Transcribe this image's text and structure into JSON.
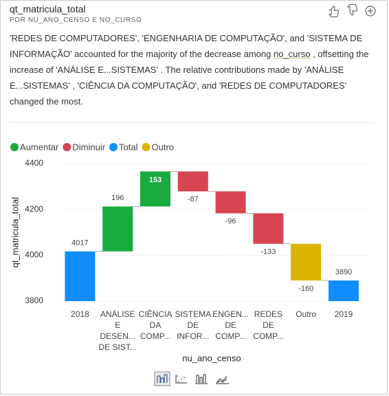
{
  "title": "qt_matricula_total",
  "subtitle": "POR NU_ANO_CENSO E NO_CURSO",
  "narrative": [
    "'REDES DE COMPUTADORES', 'ENGENHARIA DE COMPUTAÇÃO', and 'SISTEMA DE INFORMAÇÃO' accounted for the majority of the decrease among ",
    "no_curso",
    " , offsetting the increase of 'ANÁLISE E...SISTEMAS' . The relative contributions made by 'ANÁLISE E...SISTEMAS' , 'CIÊNCIA DA COMPUTAÇÃO', and 'REDES DE COMPUTADORES' changed the most."
  ],
  "chart_data": {
    "type": "waterfall",
    "legend": [
      {
        "name": "Aumentar",
        "color": "#1aab40"
      },
      {
        "name": "Diminuir",
        "color": "#d64550"
      },
      {
        "name": "Total",
        "color": "#118dff"
      },
      {
        "name": "Outro",
        "color": "#d9b300"
      }
    ],
    "categories": [
      [
        "2018"
      ],
      [
        "ANÁLISE",
        "E",
        "DESEN...",
        "DE SIST..."
      ],
      [
        "CIÊNCIA",
        "DA",
        "COMP..."
      ],
      [
        "SISTEMA",
        "DE",
        "INFOR..."
      ],
      [
        "ENGEN...",
        "DE",
        "COMP..."
      ],
      [
        "REDES",
        "DE",
        "COMP..."
      ],
      [
        "Outro"
      ],
      [
        "2019"
      ]
    ],
    "kinds": [
      "Total",
      "Aumentar",
      "Aumentar",
      "Diminuir",
      "Diminuir",
      "Diminuir",
      "Outro",
      "Total"
    ],
    "values": [
      4017,
      196,
      153,
      -87,
      -96,
      -133,
      -160,
      3890
    ],
    "ylim": [
      3800,
      4400
    ],
    "yticks": [
      3800,
      4000,
      4200,
      4400
    ],
    "grid": true,
    "xlabel": "nu_ano_censo",
    "ylabel": "qt_matricula_total"
  }
}
